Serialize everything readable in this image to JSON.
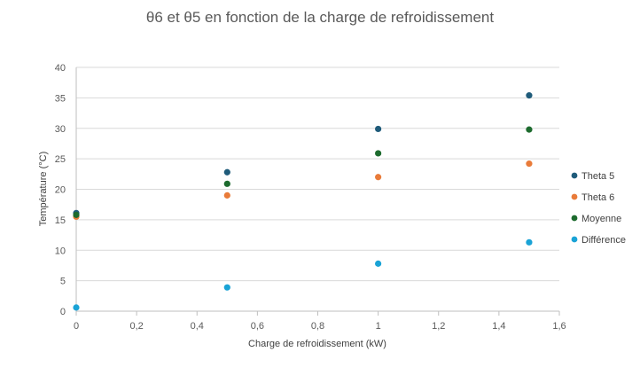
{
  "chart_data": {
    "type": "scatter",
    "title": "θ6 et θ5 en fonction de la charge de refroidissement",
    "xlabel": "Charge de refroidissement (kW)",
    "ylabel": "Température (°C)",
    "xlim": [
      0,
      1.6
    ],
    "ylim": [
      0,
      40
    ],
    "xticks": [
      "0",
      "0,2",
      "0,4",
      "0,6",
      "0,8",
      "1",
      "1,2",
      "1,4",
      "1,6"
    ],
    "yticks": [
      "0",
      "5",
      "10",
      "15",
      "20",
      "25",
      "30",
      "35",
      "40"
    ],
    "grid": "horizontal",
    "legend_position": "right",
    "x": [
      0,
      0.5,
      1,
      1.5
    ],
    "series": [
      {
        "name": "Theta 5",
        "color": "#1f5b7a",
        "values": [
          16.1,
          22.8,
          29.9,
          35.4
        ]
      },
      {
        "name": "Theta 6",
        "color": "#e97b39",
        "values": [
          15.5,
          19.0,
          22.0,
          24.2
        ]
      },
      {
        "name": "Moyenne",
        "color": "#1d6b2e",
        "values": [
          15.8,
          20.9,
          25.9,
          29.8
        ]
      },
      {
        "name": "Différence",
        "color": "#1aa3d6",
        "values": [
          0.6,
          3.9,
          7.8,
          11.3
        ]
      }
    ]
  }
}
